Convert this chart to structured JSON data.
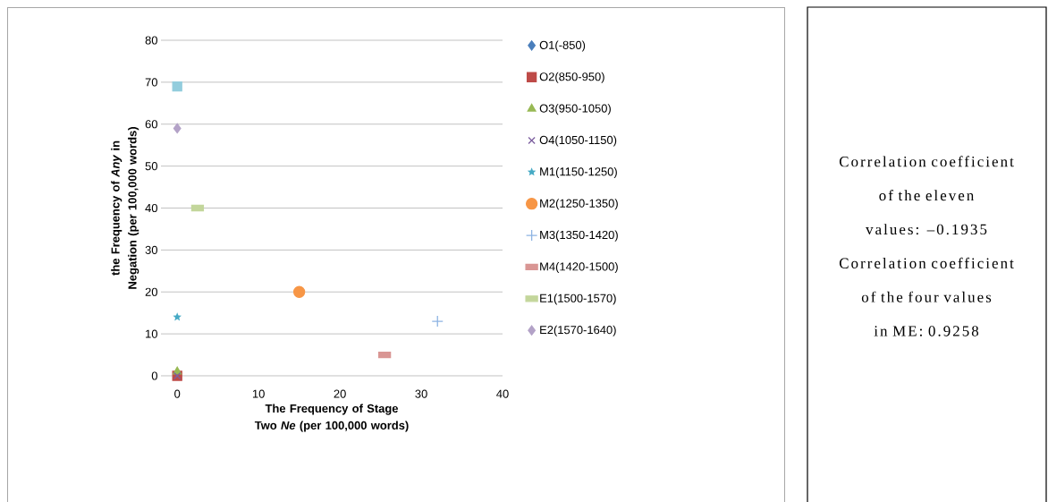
{
  "chart_data": {
    "type": "scatter",
    "xlabel": "The Frequency of Stage Two *Ne* (per 100,000 words)",
    "ylabel": "the Frequency of *Any* in Negation (per 100,000 words)",
    "xlim": [
      -2,
      40
    ],
    "ylim": [
      0,
      80
    ],
    "xticks": [
      0,
      10,
      20,
      30,
      40
    ],
    "yticks": [
      0,
      10,
      20,
      30,
      40,
      50,
      60,
      70,
      80
    ],
    "grid": "y",
    "legend": "right",
    "series": [
      {
        "name": "O1(-850)",
        "color": "#4a7ebb",
        "marker": "diamond",
        "x": [
          null
        ],
        "values": [
          null
        ]
      },
      {
        "name": "O2(850-950)",
        "color": "#be4b48",
        "marker": "square",
        "x": [
          0
        ],
        "values": [
          0
        ]
      },
      {
        "name": "O3(950-1050)",
        "color": "#98b954",
        "marker": "triangle",
        "x": [
          0
        ],
        "values": [
          1
        ]
      },
      {
        "name": "O4(1050-1150)",
        "color": "#7d60a0",
        "marker": "cross",
        "x": [
          0
        ],
        "values": [
          0
        ]
      },
      {
        "name": "M1(1150-1250)",
        "color": "#46aac5",
        "marker": "star",
        "x": [
          0
        ],
        "values": [
          14
        ]
      },
      {
        "name": "M2(1250-1350)",
        "color": "#f79646",
        "marker": "circle",
        "x": [
          15
        ],
        "values": [
          20
        ]
      },
      {
        "name": "M3(1350-1420)",
        "color": "#8eb4e3",
        "marker": "plus",
        "x": [
          32
        ],
        "values": [
          13
        ]
      },
      {
        "name": "M4(1420-1500)",
        "color": "#d99694",
        "x": [
          25.5
        ],
        "values": [
          5
        ]
      },
      {
        "name": "E1(1500-1570)",
        "color": "#c3d69b",
        "x": [
          2.5
        ],
        "values": [
          40
        ]
      },
      {
        "name": "E2(1570-1640)",
        "color": "#b3a2c7",
        "marker": "diamond",
        "x": [
          0
        ],
        "values": [
          59
        ]
      },
      {
        "color": "#93cddd",
        "marker": "square",
        "x": [
          0
        ],
        "values": [
          69
        ]
      }
    ],
    "annotations": [
      "Correlation coefficient of the eleven values: –0.1935",
      "Correlation coefficient of the four values in ME: 0.9258"
    ]
  }
}
